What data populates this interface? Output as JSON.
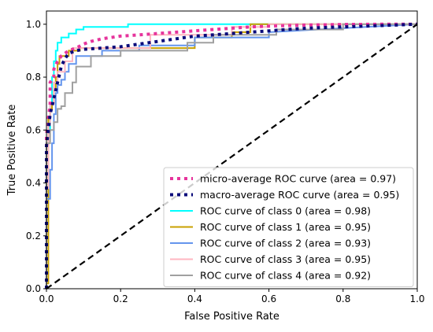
{
  "chart_data": {
    "type": "line",
    "title": "",
    "xlabel": "False Positive Rate",
    "ylabel": "True Positive Rate",
    "xlim": [
      0.0,
      1.0
    ],
    "ylim": [
      0.0,
      1.05
    ],
    "xticks": [
      0.0,
      0.2,
      0.4,
      0.6,
      0.8,
      1.0
    ],
    "yticks": [
      0.0,
      0.2,
      0.4,
      0.6,
      0.8,
      1.0
    ],
    "xtick_labels": [
      "0.0",
      "0.2",
      "0.4",
      "0.6",
      "0.8",
      "1.0"
    ],
    "ytick_labels": [
      "0.0",
      "0.2",
      "0.4",
      "0.6",
      "0.8",
      "1.0"
    ],
    "grid": false,
    "legend_position": "lower-right",
    "series": [
      {
        "name": "micro-average ROC curve (area = 0.97)",
        "color": "#e6349c",
        "style": "dotted",
        "x": [
          0.0,
          0.0,
          0.01,
          0.01,
          0.02,
          0.02,
          0.03,
          0.04,
          0.06,
          0.08,
          0.1,
          0.12,
          0.15,
          0.2,
          0.25,
          0.3,
          0.35,
          0.4,
          0.45,
          0.5,
          0.55,
          0.6,
          0.65,
          0.7,
          0.75,
          0.8,
          0.9,
          1.0
        ],
        "y": [
          0.0,
          0.58,
          0.7,
          0.78,
          0.8,
          0.83,
          0.86,
          0.88,
          0.9,
          0.91,
          0.925,
          0.935,
          0.945,
          0.955,
          0.96,
          0.965,
          0.97,
          0.975,
          0.98,
          0.985,
          0.99,
          0.993,
          0.995,
          0.997,
          0.998,
          0.999,
          1.0,
          1.0
        ]
      },
      {
        "name": "macro-average ROC curve (area = 0.95)",
        "color": "#0a0a7a",
        "style": "dotted",
        "x": [
          0.0,
          0.0,
          0.005,
          0.01,
          0.02,
          0.03,
          0.04,
          0.05,
          0.06,
          0.08,
          0.1,
          0.15,
          0.2,
          0.25,
          0.3,
          0.35,
          0.4,
          0.45,
          0.5,
          0.55,
          0.6,
          0.65,
          0.7,
          0.8,
          0.9,
          1.0
        ],
        "y": [
          0.0,
          0.54,
          0.6,
          0.66,
          0.72,
          0.78,
          0.84,
          0.87,
          0.89,
          0.9,
          0.905,
          0.91,
          0.915,
          0.925,
          0.935,
          0.945,
          0.955,
          0.96,
          0.965,
          0.97,
          0.975,
          0.98,
          0.985,
          0.99,
          0.995,
          1.0
        ]
      },
      {
        "name": "ROC curve of class 0 (area = 0.98)",
        "color": "#00ffff",
        "style": "solid",
        "x": [
          0.0,
          0.0,
          0.005,
          0.005,
          0.01,
          0.01,
          0.015,
          0.015,
          0.02,
          0.02,
          0.025,
          0.025,
          0.03,
          0.03,
          0.04,
          0.04,
          0.06,
          0.06,
          0.08,
          0.08,
          0.1,
          0.1,
          0.22,
          0.22,
          0.5,
          0.5,
          1.0
        ],
        "y": [
          0.0,
          0.38,
          0.38,
          0.6,
          0.6,
          0.7,
          0.7,
          0.8,
          0.8,
          0.86,
          0.86,
          0.9,
          0.9,
          0.93,
          0.93,
          0.95,
          0.95,
          0.965,
          0.965,
          0.98,
          0.98,
          0.99,
          0.99,
          1.0,
          1.0,
          1.0,
          1.0
        ]
      },
      {
        "name": "ROC curve of class 1 (area = 0.95)",
        "color": "#c8a000",
        "style": "solid",
        "x": [
          0.0,
          0.0,
          0.005,
          0.005,
          0.01,
          0.01,
          0.015,
          0.015,
          0.02,
          0.02,
          0.025,
          0.025,
          0.03,
          0.03,
          0.035,
          0.035,
          0.06,
          0.06,
          0.09,
          0.09,
          0.4,
          0.4,
          0.5,
          0.5,
          0.55,
          0.55,
          1.0
        ],
        "y": [
          0.0,
          0.02,
          0.02,
          0.64,
          0.64,
          0.68,
          0.68,
          0.7,
          0.7,
          0.75,
          0.75,
          0.8,
          0.8,
          0.85,
          0.85,
          0.88,
          0.88,
          0.9,
          0.9,
          0.91,
          0.91,
          0.95,
          0.95,
          0.97,
          0.97,
          1.0,
          1.0
        ]
      },
      {
        "name": "ROC curve of class 2 (area = 0.93)",
        "color": "#6495ed",
        "style": "solid",
        "x": [
          0.0,
          0.0,
          0.01,
          0.01,
          0.015,
          0.015,
          0.02,
          0.02,
          0.025,
          0.025,
          0.03,
          0.03,
          0.04,
          0.04,
          0.05,
          0.05,
          0.06,
          0.06,
          0.08,
          0.08,
          0.15,
          0.15,
          0.25,
          0.25,
          0.4,
          0.4,
          0.6,
          0.6,
          1.0
        ],
        "y": [
          0.0,
          0.34,
          0.34,
          0.45,
          0.45,
          0.55,
          0.55,
          0.66,
          0.66,
          0.74,
          0.74,
          0.77,
          0.77,
          0.79,
          0.79,
          0.82,
          0.82,
          0.85,
          0.85,
          0.88,
          0.88,
          0.9,
          0.9,
          0.92,
          0.92,
          0.95,
          0.95,
          0.97,
          1.0
        ]
      },
      {
        "name": "ROC curve of class 3 (area = 0.95)",
        "color": "#ffb6c1",
        "style": "solid",
        "x": [
          0.0,
          0.0,
          0.005,
          0.005,
          0.01,
          0.01,
          0.02,
          0.02,
          0.03,
          0.03,
          0.05,
          0.05,
          0.07,
          0.07,
          0.28,
          0.28,
          0.5,
          0.5,
          0.6,
          0.6,
          1.0
        ],
        "y": [
          0.0,
          0.38,
          0.38,
          0.62,
          0.62,
          0.7,
          0.7,
          0.78,
          0.78,
          0.82,
          0.82,
          0.86,
          0.86,
          0.91,
          0.91,
          0.96,
          0.96,
          0.99,
          0.99,
          1.0,
          1.0
        ]
      },
      {
        "name": "ROC curve of class 4 (area = 0.92)",
        "color": "#a0a0a0",
        "style": "solid",
        "x": [
          0.0,
          0.0,
          0.01,
          0.01,
          0.02,
          0.02,
          0.03,
          0.03,
          0.04,
          0.04,
          0.05,
          0.05,
          0.07,
          0.07,
          0.08,
          0.08,
          0.12,
          0.12,
          0.2,
          0.2,
          0.38,
          0.38,
          0.45,
          0.45,
          0.62,
          0.62,
          0.8,
          0.8,
          1.0
        ],
        "y": [
          0.0,
          0.55,
          0.55,
          0.6,
          0.6,
          0.63,
          0.63,
          0.68,
          0.68,
          0.69,
          0.69,
          0.74,
          0.74,
          0.78,
          0.78,
          0.84,
          0.84,
          0.88,
          0.88,
          0.9,
          0.9,
          0.93,
          0.93,
          0.96,
          0.96,
          0.98,
          0.98,
          1.0,
          1.0
        ]
      },
      {
        "name": "",
        "color": "#000000",
        "style": "dashed",
        "x": [
          0.0,
          1.0
        ],
        "y": [
          0.0,
          1.0
        ]
      }
    ]
  }
}
